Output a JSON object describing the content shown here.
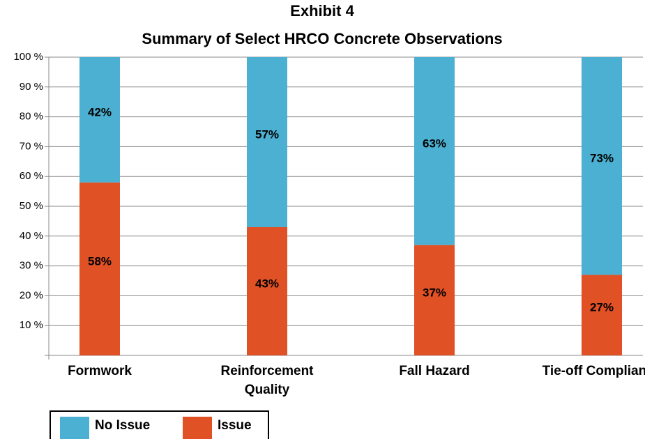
{
  "chart_data": {
    "type": "stacked_bar",
    "title": "Exhibit 4",
    "subtitle": "Summary of Select HRCO Concrete Observations",
    "categories": [
      "Formwork",
      "Reinforcement Quality",
      "Fall Hazard",
      "Tie-off Compliance"
    ],
    "series": [
      {
        "name": "No Issue",
        "color": "#4bb0d1",
        "values": [
          42,
          57,
          63,
          73
        ],
        "value_labels": [
          "42%",
          "57%",
          "63%",
          "73%"
        ]
      },
      {
        "name": "Issue",
        "color": "#e05126",
        "values": [
          58,
          43,
          37,
          27
        ],
        "value_labels": [
          "58%",
          "43%",
          "37%",
          "27%"
        ]
      }
    ],
    "ylim": [
      0,
      100
    ],
    "yticks": [
      {
        "value": 10,
        "label": "10 %"
      },
      {
        "value": 20,
        "label": "20 %"
      },
      {
        "value": 30,
        "label": "30 %"
      },
      {
        "value": 40,
        "label": "40 %"
      },
      {
        "value": 50,
        "label": "50 %"
      },
      {
        "value": 60,
        "label": "60 %"
      },
      {
        "value": 70,
        "label": "70 %"
      },
      {
        "value": 80,
        "label": "80 %"
      },
      {
        "value": 90,
        "label": "90 %"
      },
      {
        "value": 100,
        "label": "100 %"
      }
    ],
    "grid": true,
    "legend": "bottom-left"
  }
}
